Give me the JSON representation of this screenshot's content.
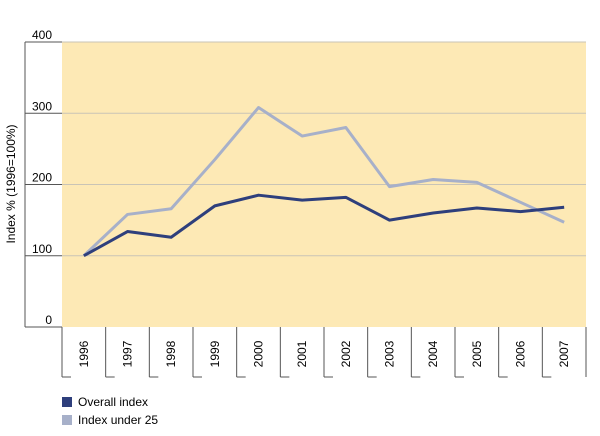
{
  "chart_data": {
    "type": "line",
    "ylabel": "Index %  (1996=100%)",
    "ylim": [
      0,
      400
    ],
    "yticks": [
      0,
      100,
      200,
      300,
      400
    ],
    "categories": [
      "1996",
      "1997",
      "1998",
      "1999",
      "2000",
      "2001",
      "2002",
      "2003",
      "2004",
      "2005",
      "2006",
      "2007"
    ],
    "series": [
      {
        "name": "Overall index",
        "color": "#2e3f7c",
        "values": [
          100,
          134,
          126,
          170,
          185,
          178,
          182,
          150,
          160,
          167,
          162,
          168
        ]
      },
      {
        "name": "Index under 25",
        "color": "#a7b0c9",
        "values": [
          100,
          158,
          166,
          235,
          308,
          268,
          280,
          197,
          207,
          203,
          175,
          147
        ]
      }
    ],
    "grid": true,
    "background_color": "#fde9b5",
    "legend_position": "bottom-left"
  }
}
